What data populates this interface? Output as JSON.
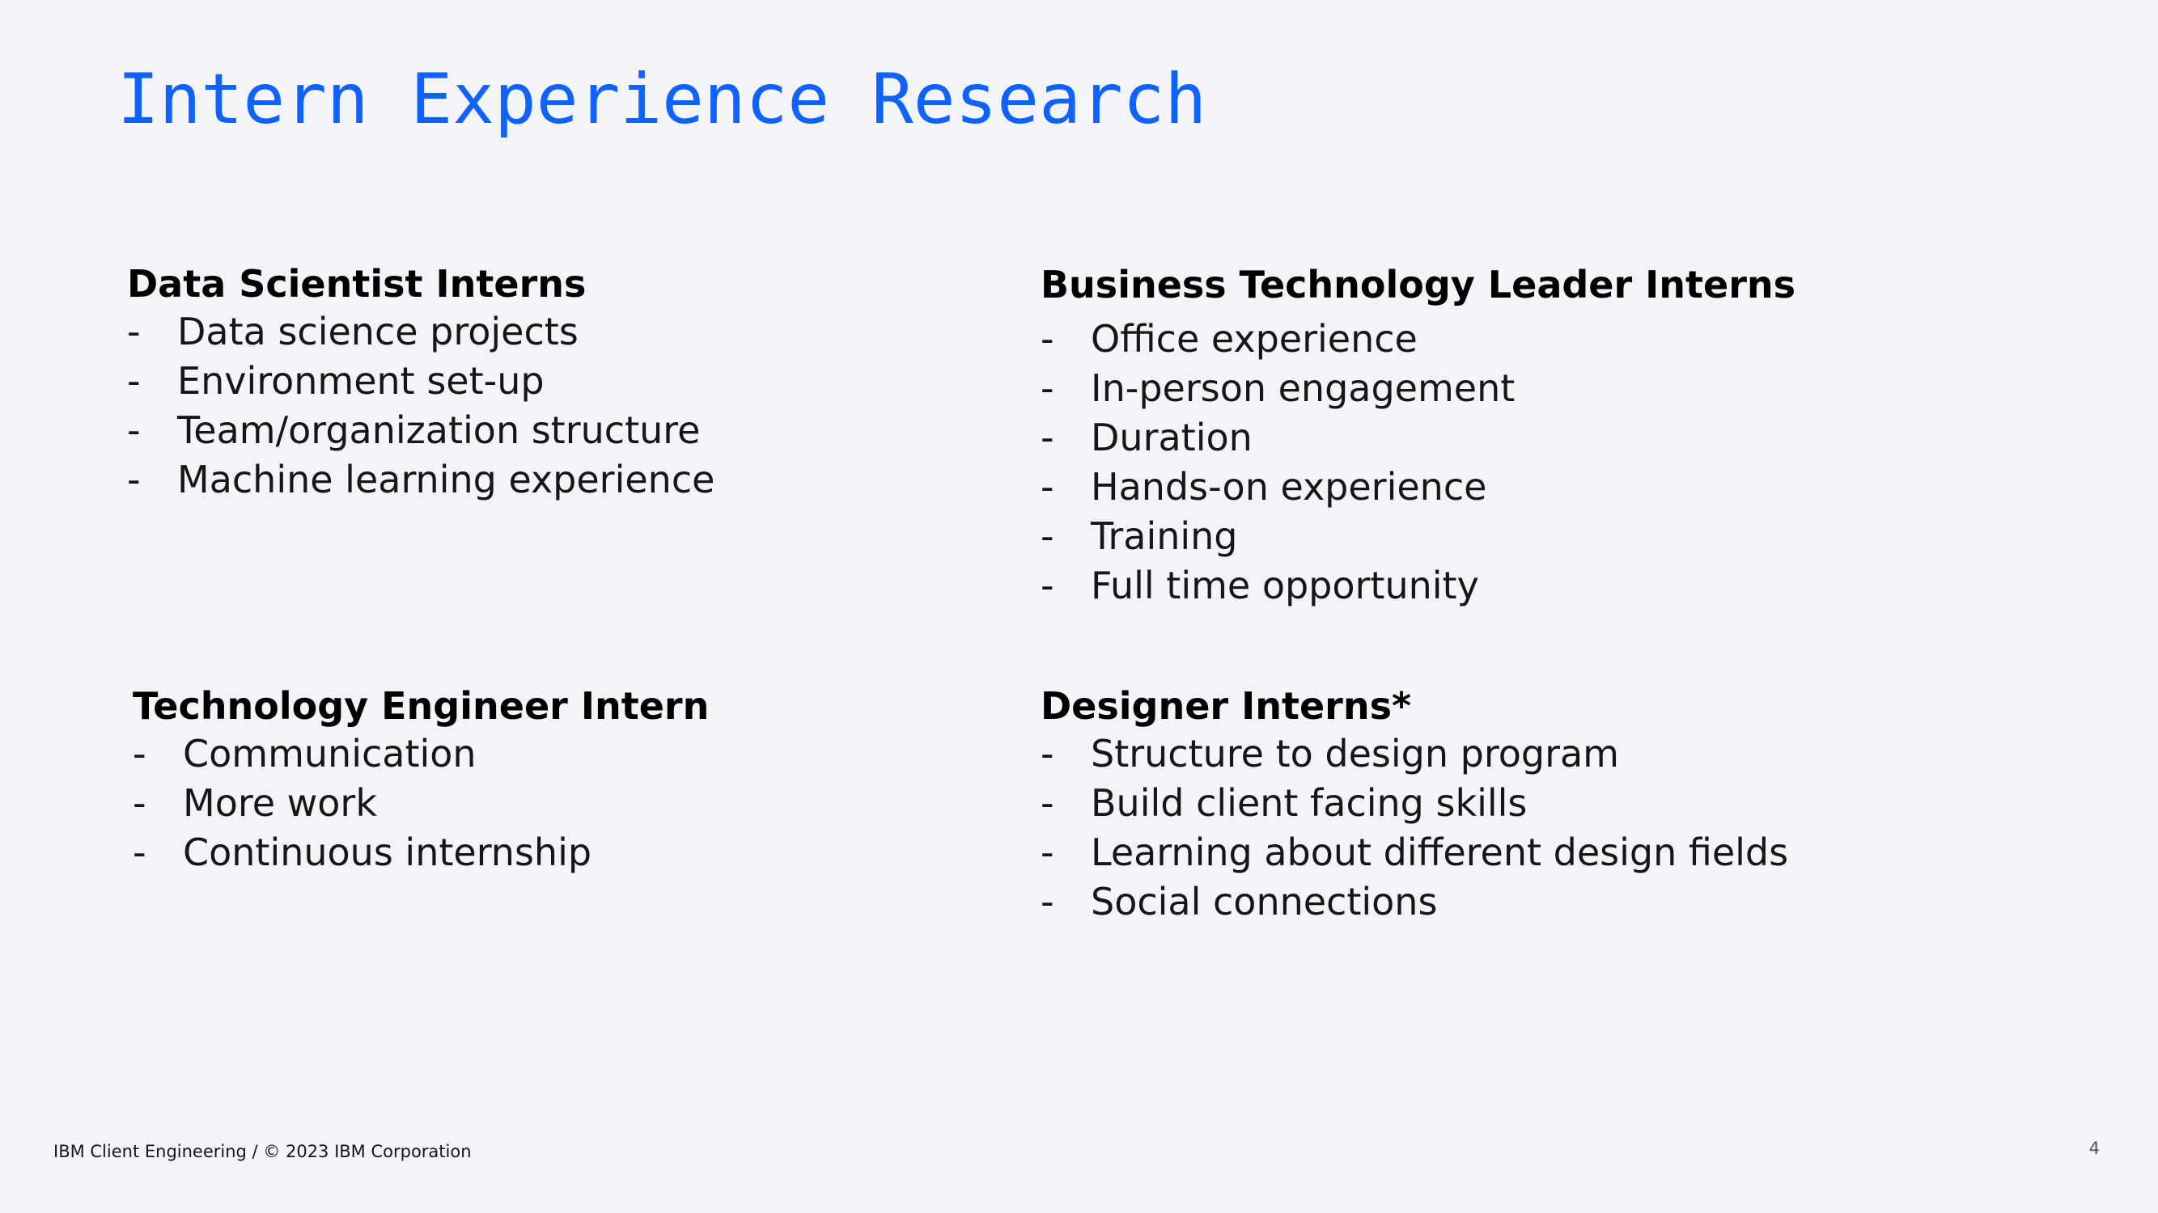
{
  "slide": {
    "title": "Intern Experience Research",
    "title_color": "#0f62fe",
    "background_color": "#f2f4f8"
  },
  "sections": {
    "data_scientist": {
      "heading": "Data Scientist Interns",
      "items": [
        "Data science projects",
        "Environment set-up",
        "Team/organization structure",
        "Machine learning experience"
      ]
    },
    "business_technology_leader": {
      "heading": "Business Technology Leader Interns",
      "items": [
        "Office experience",
        "In-person engagement",
        "Duration",
        "Hands-on experience",
        "Training",
        "Full time opportunity"
      ]
    },
    "technology_engineer": {
      "heading": "Technology Engineer Intern",
      "items": [
        "Communication",
        "More work",
        "Continuous internship"
      ]
    },
    "designer": {
      "heading": "Designer Interns*",
      "items": [
        "Structure to design program",
        "Build client facing skills",
        "Learning about different design fields",
        "Social connections"
      ]
    }
  },
  "bullet_marker": "-",
  "footer": {
    "text": "IBM Client Engineering / © 2023 IBM Corporation",
    "page_number": "4"
  }
}
